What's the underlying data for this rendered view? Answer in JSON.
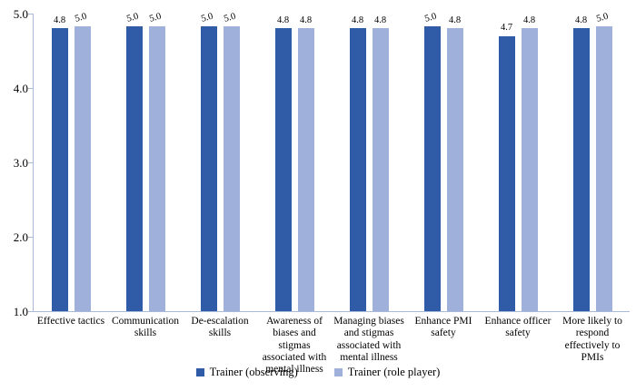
{
  "figure": {
    "background": "#ffffff",
    "axis_color": "#a9bad9",
    "text_color": "#000000"
  },
  "chart_data": {
    "type": "bar",
    "title": "",
    "xlabel": "",
    "ylabel": "",
    "ylim": [
      1.0,
      5.0
    ],
    "yticks": [
      {
        "label": "5.0",
        "value": 5.0
      },
      {
        "label": "4.0",
        "value": 4.0
      },
      {
        "label": "3.0",
        "value": 3.0
      },
      {
        "label": "2.0",
        "value": 2.0
      },
      {
        "label": "1.0",
        "value": 1.0
      }
    ],
    "grid": false,
    "legend_position": "bottom",
    "value_labels_shown": true,
    "categories": [
      "Effective tactics",
      "Communication skills",
      "De-escalation skills",
      "Awareness of biases and stigmas associated with mental illness",
      "Managing biases and stigmas associated with mental illness",
      "Enhance PMI safety",
      "Enhance officer safety",
      "More likely to respond effectively to PMIs"
    ],
    "category_display_lines": [
      "Effective tactics",
      "Communication\nskills",
      "De-escalation\nskills",
      "Awareness of\nbiases and stigmas\nassociated with\nmental illness",
      "Managing biases\nand stigmas\nassociated with\nmental illness",
      "Enhance PMI\nsafety",
      "Enhance officer\nsafety",
      "More likely to\nrespond\neffectively to\nPMIs"
    ],
    "series": [
      {
        "name": "Trainer (observing)",
        "color": "#2f5ba7",
        "values": [
          4.8,
          5.0,
          5.0,
          4.8,
          4.8,
          5.0,
          4.7,
          4.8
        ],
        "value_labels": [
          "4.8",
          "5.0",
          "5.0",
          "4.8",
          "4.8",
          "5.0",
          "4.7",
          "4.8"
        ]
      },
      {
        "name": "Trainer (role player)",
        "color": "#9fb0da",
        "values": [
          5.0,
          5.0,
          5.0,
          4.8,
          4.8,
          4.8,
          4.8,
          5.0
        ],
        "value_labels": [
          "5.0",
          "5.0",
          "5.0",
          "4.8",
          "4.8",
          "4.8",
          "4.8",
          "5.0"
        ]
      }
    ]
  }
}
